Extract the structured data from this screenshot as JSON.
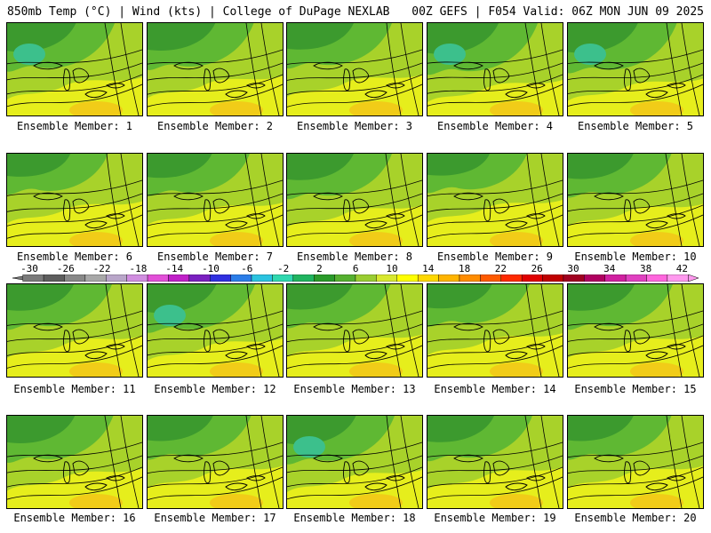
{
  "header": {
    "left": "850mb Temp (°C) | Wind (kts) | College of DuPage NEXLAB",
    "right": "00Z GEFS | F054 Valid: 06Z MON JUN 09 2025"
  },
  "members": [
    {
      "label": "Ensemble Member: 1",
      "shade": 0.7
    },
    {
      "label": "Ensemble Member: 2",
      "shade": 0.65
    },
    {
      "label": "Ensemble Member: 3",
      "shade": 0.6
    },
    {
      "label": "Ensemble Member: 4",
      "shade": 0.8
    },
    {
      "label": "Ensemble Member: 5",
      "shade": 0.75
    },
    {
      "label": "Ensemble Member: 6",
      "shade": 0.45
    },
    {
      "label": "Ensemble Member: 7",
      "shade": 0.5
    },
    {
      "label": "Ensemble Member: 8",
      "shade": 0.6
    },
    {
      "label": "Ensemble Member: 9",
      "shade": 0.4
    },
    {
      "label": "Ensemble Member: 10",
      "shade": 0.55
    },
    {
      "label": "Ensemble Member: 11",
      "shade": 0.6
    },
    {
      "label": "Ensemble Member: 12",
      "shade": 0.7
    },
    {
      "label": "Ensemble Member: 13",
      "shade": 0.55
    },
    {
      "label": "Ensemble Member: 14",
      "shade": 0.5
    },
    {
      "label": "Ensemble Member: 15",
      "shade": 0.6
    },
    {
      "label": "Ensemble Member: 16",
      "shade": 0.65
    },
    {
      "label": "Ensemble Member: 17",
      "shade": 0.55
    },
    {
      "label": "Ensemble Member: 18",
      "shade": 0.7
    },
    {
      "label": "Ensemble Member: 19",
      "shade": 0.6
    },
    {
      "label": "Ensemble Member: 20",
      "shade": 0.55
    }
  ],
  "colorbar": {
    "labels": [
      "-30",
      "-26",
      "-22",
      "-18",
      "-14",
      "-10",
      "-6",
      "-2",
      "2",
      "6",
      "10",
      "14",
      "18",
      "22",
      "26",
      "30",
      "34",
      "38",
      "42"
    ],
    "colors": [
      "#7a7a7a",
      "#5e5e5e",
      "#888888",
      "#a8a8a8",
      "#b9a6c9",
      "#d18ee0",
      "#e24fd8",
      "#c020c8",
      "#7a20c0",
      "#3030e0",
      "#2b7de8",
      "#2bc3e0",
      "#30d8b0",
      "#20b460",
      "#2a9a2a",
      "#55b030",
      "#9acd32",
      "#d8e830",
      "#ffff00",
      "#ffd800",
      "#ffb400",
      "#ff8c00",
      "#ff5a00",
      "#ff2a00",
      "#e00000",
      "#c00000",
      "#a00020",
      "#b00060",
      "#d020a0",
      "#e040c0",
      "#ff66dd",
      "#ff99ee"
    ]
  },
  "palette": {
    "yellow": "#e6ee1c",
    "yellow_green": "#a8d22a",
    "green": "#5fb833",
    "dark_green": "#3c9a2e",
    "teal": "#3cc08c",
    "orange": "#f2c618"
  }
}
